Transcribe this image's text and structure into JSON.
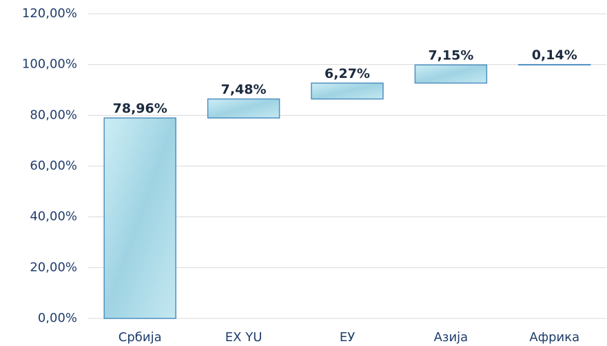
{
  "chart_data": {
    "type": "waterfall",
    "categories": [
      "Србија",
      "EX YU",
      "ЕУ",
      "Азија",
      "Африка"
    ],
    "values": [
      78.96,
      7.48,
      6.27,
      7.15,
      0.14
    ],
    "value_labels": [
      "78,96%",
      "7,48%",
      "6,27%",
      "7,15%",
      "0,14%"
    ],
    "color": "#a9dbe8",
    "ylim": [
      0,
      120
    ],
    "yticks": [
      {
        "value": 0,
        "label": "0,00%"
      },
      {
        "value": 20,
        "label": "20,00%"
      },
      {
        "value": 40,
        "label": "40,00%"
      },
      {
        "value": 60,
        "label": "60,00%"
      },
      {
        "value": 80,
        "label": "80,00%"
      },
      {
        "value": 100,
        "label": "100,00%"
      },
      {
        "value": 120,
        "label": "120,00%"
      }
    ],
    "grid": true
  }
}
